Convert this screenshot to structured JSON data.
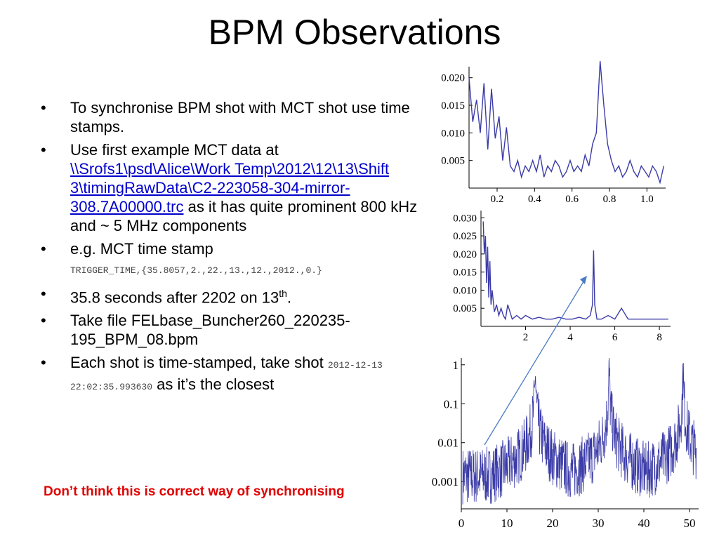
{
  "slide": {
    "title": "BPM Observations",
    "bullets": {
      "b1": "To synchronise BPM shot with MCT shot use time stamps.",
      "b2_pre": "Use first example MCT data at ",
      "b2_link": "\\\\Srofs1\\psd\\Alice\\Work Temp\\2012\\12\\13\\Shift 3\\timingRawData\\C2-223058-304-mirror-308.7A00000.trc",
      "b2_post": " as it has quite prominent 800 kHz and ~ 5 MHz components",
      "b3_text": "e.g. MCT time stamp",
      "b3_code": "TRIGGER_TIME,{35.8057,2.,22.,13.,12.,2012.,0.}",
      "b4_pre": "35.8 seconds after 2202 on 13",
      "b4_sup": "th",
      "b4_post": ".",
      "b5": "Take file FELbase_Buncher260_220235-195_BPM_08.bpm",
      "b6_pre": "Each shot is time-stamped, take shot ",
      "b6_code": "2012-12-13 22:02:35.993630",
      "b6_post": " as it’s the closest"
    },
    "warning": "Don’t think this is correct way of synchronising"
  },
  "colors": {
    "trace": "#3b3ba8",
    "arrow": "#4a7cc4",
    "warning": "#e00000"
  },
  "chart_data": [
    {
      "type": "line",
      "xlim": [
        0.05,
        1.1
      ],
      "ylim": [
        0,
        0.022
      ],
      "xticks": [
        "0.2",
        "0.4",
        "0.6",
        "0.8",
        "1.0"
      ],
      "yticks": [
        "0.005",
        "0.010",
        "0.015",
        "0.020"
      ],
      "x": [
        0.05,
        0.07,
        0.09,
        0.11,
        0.13,
        0.15,
        0.17,
        0.19,
        0.21,
        0.23,
        0.25,
        0.27,
        0.29,
        0.31,
        0.33,
        0.35,
        0.37,
        0.39,
        0.41,
        0.43,
        0.45,
        0.47,
        0.49,
        0.51,
        0.53,
        0.55,
        0.57,
        0.59,
        0.61,
        0.63,
        0.65,
        0.67,
        0.69,
        0.71,
        0.73,
        0.75,
        0.77,
        0.79,
        0.81,
        0.83,
        0.85,
        0.87,
        0.89,
        0.91,
        0.93,
        0.95,
        0.97,
        0.99,
        1.01,
        1.03,
        1.05,
        1.07,
        1.09
      ],
      "y": [
        0.02,
        0.012,
        0.016,
        0.01,
        0.019,
        0.007,
        0.018,
        0.009,
        0.013,
        0.005,
        0.011,
        0.004,
        0.003,
        0.005,
        0.002,
        0.004,
        0.003,
        0.005,
        0.003,
        0.006,
        0.002,
        0.004,
        0.003,
        0.005,
        0.004,
        0.002,
        0.003,
        0.005,
        0.003,
        0.004,
        0.003,
        0.006,
        0.004,
        0.008,
        0.01,
        0.023,
        0.015,
        0.008,
        0.005,
        0.003,
        0.004,
        0.002,
        0.003,
        0.005,
        0.003,
        0.002,
        0.004,
        0.003,
        0.002,
        0.004,
        0.003,
        0.001,
        0.004
      ]
    },
    {
      "type": "line",
      "xlim": [
        0,
        8.5
      ],
      "ylim": [
        0,
        0.032
      ],
      "xticks": [
        "2",
        "4",
        "6",
        "8"
      ],
      "yticks": [
        "0.005",
        "0.010",
        "0.015",
        "0.020",
        "0.025",
        "0.030"
      ],
      "x": [
        0.1,
        0.15,
        0.2,
        0.25,
        0.3,
        0.35,
        0.4,
        0.45,
        0.5,
        0.6,
        0.7,
        0.8,
        0.9,
        1.0,
        1.1,
        1.2,
        1.4,
        1.6,
        1.8,
        2.0,
        2.3,
        2.6,
        2.9,
        3.2,
        3.5,
        3.8,
        4.1,
        4.4,
        4.7,
        4.9,
        5.0,
        5.05,
        5.1,
        5.2,
        5.4,
        5.7,
        6.0,
        6.3,
        6.6,
        7.0,
        7.4,
        7.8,
        8.2,
        8.4
      ],
      "y": [
        0.029,
        0.02,
        0.025,
        0.012,
        0.022,
        0.008,
        0.018,
        0.006,
        0.01,
        0.004,
        0.006,
        0.003,
        0.005,
        0.003,
        0.002,
        0.006,
        0.002,
        0.003,
        0.002,
        0.003,
        0.002,
        0.0025,
        0.002,
        0.002,
        0.0025,
        0.002,
        0.002,
        0.0025,
        0.002,
        0.003,
        0.006,
        0.021,
        0.006,
        0.002,
        0.002,
        0.003,
        0.002,
        0.005,
        0.002,
        0.002,
        0.002,
        0.002,
        0.002,
        0.002
      ]
    },
    {
      "type": "line",
      "log_y": true,
      "xlim": [
        0,
        52
      ],
      "ylim": [
        0.0002,
        1.5
      ],
      "xticks": [
        "0",
        "10",
        "20",
        "30",
        "40",
        "50"
      ],
      "yticks": [
        "0.001",
        "0.01",
        "0.1",
        "1"
      ],
      "peaks_x": [
        16.2,
        32.4,
        48.6
      ],
      "peak_y": 1,
      "floor_y": 0.002
    }
  ]
}
